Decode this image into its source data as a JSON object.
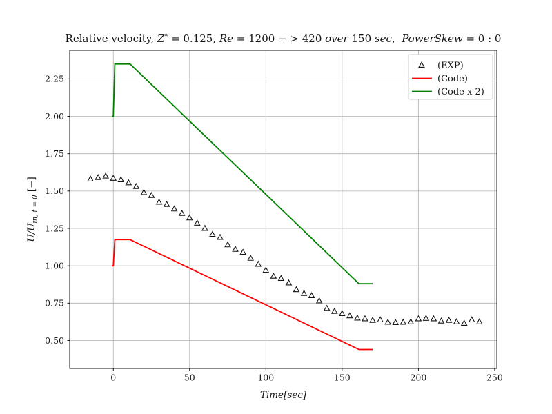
{
  "figure": {
    "background": "#ffffff",
    "title_plain": "Relative velocity, Z* = 0.125, Re = 1200 − > 420 over 150 sec,  PowerSkew = 0 : 0",
    "title_segments": [
      {
        "text": "Relative velocity, ",
        "italic": false
      },
      {
        "text": "Z",
        "italic": true
      },
      {
        "text": "*",
        "italic": false,
        "sup": true
      },
      {
        "text": " = 0.125, ",
        "italic": false
      },
      {
        "text": "Re",
        "italic": true
      },
      {
        "text": " = 1200 − > 420 ",
        "italic": false
      },
      {
        "text": "over",
        "italic": true
      },
      {
        "text": " 150 ",
        "italic": false
      },
      {
        "text": "sec",
        "italic": true
      },
      {
        "text": ",  ",
        "italic": false
      },
      {
        "text": "PowerSkew",
        "italic": true
      },
      {
        "text": " = 0 : 0",
        "italic": false
      }
    ],
    "ylabel_segments": [
      {
        "text": "U̅/U",
        "italic": true
      },
      {
        "text": "in, t = 0",
        "italic": true,
        "sub": true
      },
      {
        "text": " [−]",
        "italic": false
      }
    ]
  },
  "chart_data": {
    "type": "line+scatter",
    "title": "Relative velocity, Z* = 0.125, Re = 1200 − > 420 over 150 sec,  PowerSkew = 0 : 0",
    "xlabel": "Time[sec]",
    "ylabel": "U̅/U_{in, t = 0} [−]",
    "xlim": [
      -28.6,
      251.4
    ],
    "ylim": [
      0.313,
      2.441
    ],
    "xticks": [
      0,
      50,
      100,
      150,
      200,
      250
    ],
    "xtick_labels": [
      "0",
      "50",
      "100",
      "150",
      "200",
      "250"
    ],
    "yticks": [
      0.5,
      0.75,
      1.0,
      1.25,
      1.5,
      1.75,
      2.0,
      2.25
    ],
    "ytick_labels": [
      "0.50",
      "0.75",
      "1.00",
      "1.25",
      "1.50",
      "1.75",
      "2.00",
      "2.25"
    ],
    "grid": true,
    "grid_color": "#b0b0b0",
    "legend_position": "upper right",
    "series": [
      {
        "name": "(EXP)",
        "type": "scatter",
        "marker": "triangle-open",
        "color": "#141414",
        "x": [
          -15,
          -10,
          -5,
          0,
          5,
          10,
          15,
          20,
          25,
          30,
          35,
          40,
          45,
          50,
          55,
          60,
          65,
          70,
          75,
          80,
          85,
          90,
          95,
          100,
          105,
          110,
          115,
          120,
          125,
          130,
          135,
          140,
          145,
          150,
          155,
          160,
          165,
          170,
          175,
          180,
          185,
          190,
          195,
          200,
          205,
          210,
          215,
          220,
          225,
          230,
          235,
          240
        ],
        "y": [
          1.58,
          1.59,
          1.6,
          1.585,
          1.575,
          1.555,
          1.53,
          1.49,
          1.47,
          1.425,
          1.41,
          1.38,
          1.35,
          1.32,
          1.285,
          1.25,
          1.21,
          1.19,
          1.14,
          1.11,
          1.09,
          1.05,
          1.01,
          0.97,
          0.93,
          0.915,
          0.885,
          0.84,
          0.815,
          0.8,
          0.765,
          0.715,
          0.695,
          0.68,
          0.665,
          0.65,
          0.645,
          0.635,
          0.638,
          0.622,
          0.62,
          0.622,
          0.625,
          0.645,
          0.648,
          0.645,
          0.63,
          0.635,
          0.625,
          0.615,
          0.638,
          0.625
        ]
      },
      {
        "name": "(Code)",
        "type": "line",
        "color": "#ff0000",
        "x": [
          -1,
          0,
          1,
          11,
          161,
          170
        ],
        "y": [
          1.0,
          1.0,
          1.175,
          1.175,
          0.44,
          0.44
        ]
      },
      {
        "name": "(Code x 2)",
        "type": "line",
        "color": "#008000",
        "x": [
          -1,
          0,
          1,
          11,
          161,
          170
        ],
        "y": [
          2.0,
          2.0,
          2.35,
          2.35,
          0.88,
          0.88
        ]
      }
    ]
  }
}
